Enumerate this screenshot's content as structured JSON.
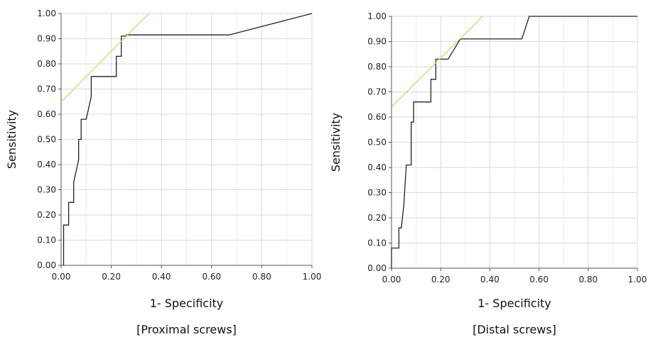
{
  "chart_data": [
    {
      "type": "line",
      "title": "",
      "caption": "[Proximal screws]",
      "xlabel": "1- Specificity",
      "ylabel": "Sensitivity",
      "xlim": [
        0,
        1
      ],
      "ylim": [
        0,
        1
      ],
      "grid": true,
      "x_ticks": [
        "0.00",
        "0.20",
        "0.40",
        "0.60",
        "0.80",
        "1.00"
      ],
      "y_ticks": [
        "0.00",
        "0.10",
        "0.20",
        "0.30",
        "0.40",
        "0.50",
        "0.60",
        "0.70",
        "0.80",
        "0.90",
        "1.00"
      ],
      "series": [
        {
          "name": "",
          "color": "#222222",
          "x": [
            0.01,
            0.01,
            0.03,
            0.03,
            0.05,
            0.05,
            0.07,
            0.07,
            0.08,
            0.08,
            0.1,
            0.12,
            0.12,
            0.22,
            0.22,
            0.24,
            0.24,
            0.26,
            0.26,
            0.67,
            1.0
          ],
          "y": [
            0.0,
            0.16,
            0.16,
            0.25,
            0.25,
            0.33,
            0.42,
            0.5,
            0.5,
            0.58,
            0.58,
            0.67,
            0.75,
            0.75,
            0.83,
            0.83,
            0.91,
            0.91,
            0.915,
            0.915,
            1.0
          ]
        },
        {
          "name": "",
          "color": "#d8d46e",
          "x": [
            0.0,
            0.35
          ],
          "y": [
            0.65,
            1.0
          ]
        }
      ]
    },
    {
      "type": "line",
      "title": "",
      "caption": "[Distal screws]",
      "xlabel": "1- Specificity",
      "ylabel": "Sensitivity",
      "xlim": [
        0,
        1
      ],
      "ylim": [
        0,
        1
      ],
      "grid": true,
      "x_ticks": [
        "0.00",
        "0.20",
        "0.40",
        "0.60",
        "0.80",
        "1.00"
      ],
      "y_ticks": [
        "0.00",
        "0.10",
        "0.20",
        "0.30",
        "0.40",
        "0.50",
        "0.60",
        "0.70",
        "0.80",
        "0.90",
        "1.00"
      ],
      "series": [
        {
          "name": "",
          "color": "#222222",
          "x": [
            0.0,
            0.0,
            0.03,
            0.03,
            0.04,
            0.05,
            0.06,
            0.06,
            0.08,
            0.08,
            0.09,
            0.09,
            0.16,
            0.16,
            0.18,
            0.18,
            0.23,
            0.28,
            0.28,
            0.53,
            0.56,
            1.0
          ],
          "y": [
            0.0,
            0.08,
            0.08,
            0.16,
            0.16,
            0.25,
            0.41,
            0.41,
            0.41,
            0.58,
            0.58,
            0.66,
            0.66,
            0.75,
            0.75,
            0.83,
            0.83,
            0.91,
            0.91,
            0.91,
            1.0,
            1.0
          ]
        },
        {
          "name": "",
          "color": "#d8d46e",
          "x": [
            0.0,
            0.37
          ],
          "y": [
            0.64,
            1.0
          ]
        }
      ]
    }
  ]
}
